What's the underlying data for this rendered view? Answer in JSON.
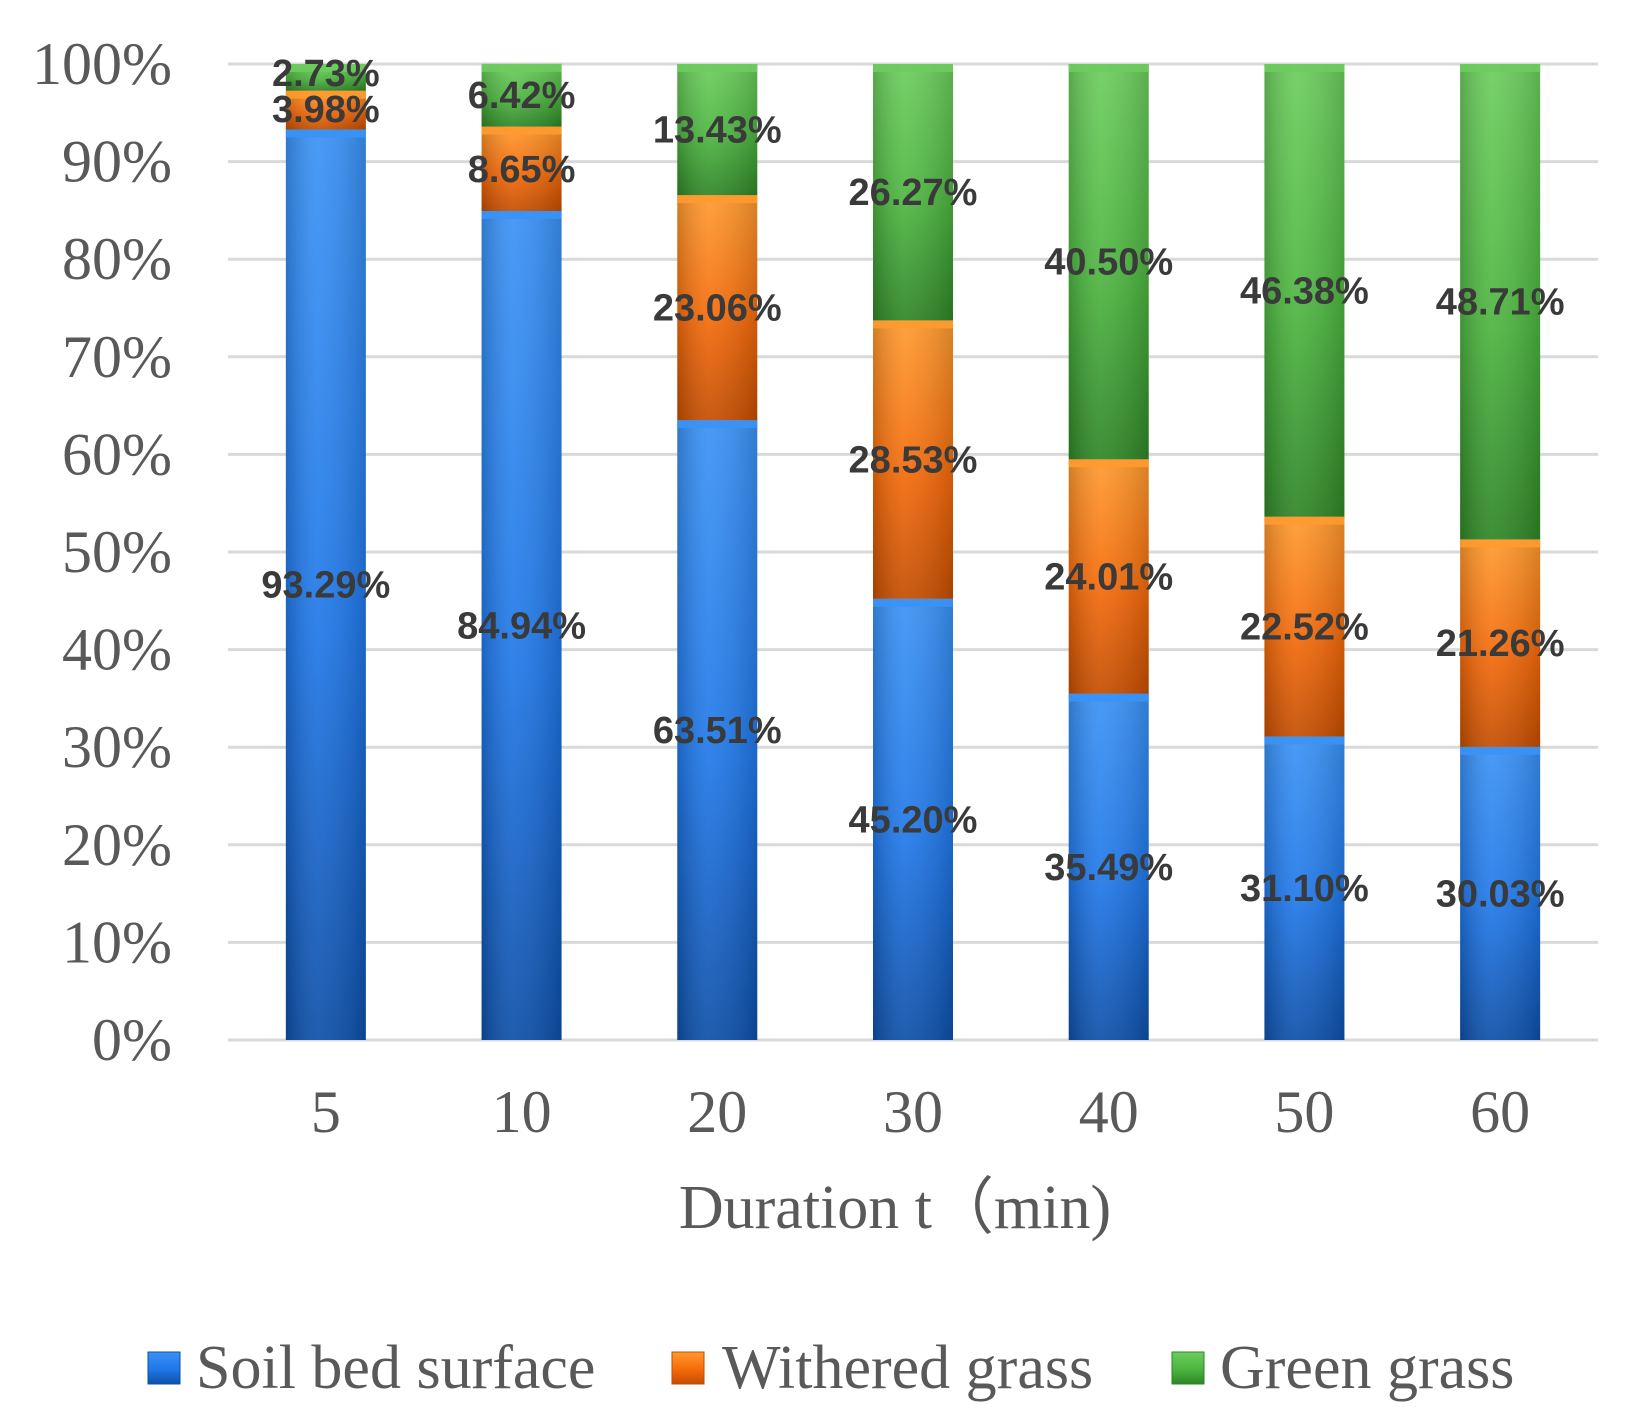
{
  "chart_data": {
    "type": "bar",
    "stacked": true,
    "percent": true,
    "categories": [
      "5",
      "10",
      "20",
      "30",
      "40",
      "50",
      "60"
    ],
    "series": [
      {
        "name": "Soil bed surface",
        "color": "#1f77e8",
        "values": [
          93.29,
          84.94,
          63.51,
          45.2,
          35.49,
          31.1,
          30.03
        ],
        "labels": [
          "93.29%",
          "84.94%",
          "63.51%",
          "45.20%",
          "35.49%",
          "31.10%",
          "30.03%"
        ]
      },
      {
        "name": "Withered grass",
        "color": "#f46a0a",
        "values": [
          3.98,
          8.65,
          23.06,
          28.53,
          24.01,
          22.52,
          21.26
        ],
        "labels": [
          "3.98%",
          "8.65%",
          "23.06%",
          "28.53%",
          "24.01%",
          "22.52%",
          "21.26%"
        ]
      },
      {
        "name": "Green grass",
        "color": "#4cb43f",
        "values": [
          2.73,
          6.42,
          13.43,
          26.27,
          40.5,
          46.38,
          48.71
        ],
        "labels": [
          "2.73%",
          "6.42%",
          "13.43%",
          "26.27%",
          "40.50%",
          "46.38%",
          "48.71%"
        ]
      }
    ],
    "yticks": [
      "0%",
      "10%",
      "20%",
      "30%",
      "40%",
      "50%",
      "60%",
      "70%",
      "80%",
      "90%",
      "100%"
    ],
    "ylim": [
      0,
      100
    ],
    "xlabel": "Duration  t（min)",
    "ylabel": "",
    "grid": true,
    "legend": "bottom"
  }
}
